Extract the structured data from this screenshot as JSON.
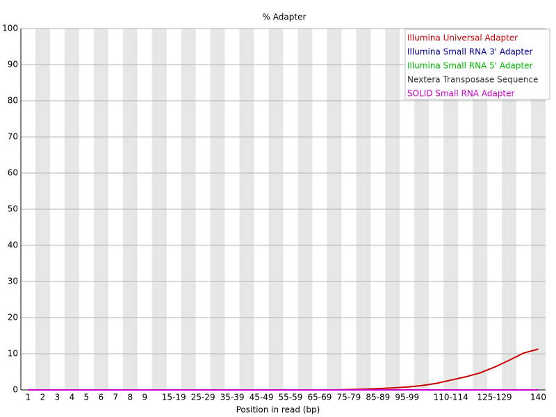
{
  "chart_data": {
    "type": "line",
    "title": "% Adapter",
    "x_label": "Position in read (bp)",
    "categories": [
      "1",
      "2",
      "3",
      "4",
      "5",
      "6",
      "7",
      "8",
      "9",
      null,
      "15-19",
      null,
      "25-29",
      null,
      "35-39",
      null,
      "45-49",
      null,
      "55-59",
      null,
      "65-69",
      null,
      "75-79",
      null,
      "85-89",
      null,
      "95-99",
      null,
      null,
      "110-114",
      null,
      null,
      "125-129",
      null,
      null,
      "140"
    ],
    "series": [
      {
        "name": "Illumina Universal Adapter",
        "color": "#cc0000",
        "values": [
          0,
          0,
          0,
          0,
          0,
          0,
          0,
          0,
          0,
          0,
          0,
          0,
          0,
          0,
          0,
          0,
          0,
          0,
          0,
          0,
          0,
          0,
          0.1,
          0.2,
          0.35,
          0.55,
          0.8,
          1.2,
          1.8,
          2.7,
          3.6,
          4.7,
          6.3,
          8.2,
          10.2,
          11.3
        ]
      },
      {
        "name": "Illumina Small RNA 3' Adapter",
        "color": "#000099",
        "values": [
          0,
          0,
          0,
          0,
          0,
          0,
          0,
          0,
          0,
          0,
          0,
          0,
          0,
          0,
          0,
          0,
          0,
          0,
          0,
          0,
          0,
          0,
          0,
          0,
          0,
          0,
          0,
          0,
          0,
          0,
          0,
          0,
          0,
          0,
          0,
          0
        ]
      },
      {
        "name": "Illumina Small RNA 5' Adapter",
        "color": "#00bb00",
        "values": [
          0,
          0,
          0,
          0,
          0,
          0,
          0,
          0,
          0,
          0,
          0,
          0,
          0,
          0,
          0,
          0,
          0,
          0,
          0,
          0,
          0,
          0,
          0,
          0,
          0,
          0,
          0,
          0,
          0,
          0,
          0,
          0,
          0,
          0,
          0,
          0
        ]
      },
      {
        "name": "Nextera Transposase Sequence",
        "color": "#333333",
        "values": [
          0,
          0,
          0,
          0,
          0,
          0,
          0,
          0,
          0,
          0,
          0,
          0,
          0,
          0,
          0,
          0,
          0,
          0,
          0,
          0,
          0,
          0,
          0,
          0,
          0,
          0,
          0,
          0,
          0,
          0,
          0,
          0,
          0,
          0,
          0,
          0
        ]
      },
      {
        "name": "SOLID Small RNA Adapter",
        "color": "#cc00cc",
        "values": [
          0,
          0,
          0,
          0,
          0,
          0,
          0,
          0,
          0,
          0,
          0,
          0,
          0,
          0,
          0,
          0,
          0,
          0,
          0,
          0,
          0,
          0,
          0,
          0,
          0,
          0,
          0,
          0,
          0,
          0,
          0,
          0,
          0,
          0,
          0,
          0
        ]
      }
    ],
    "ylim": [
      0,
      100
    ],
    "yticks": [
      0,
      10,
      20,
      30,
      40,
      50,
      60,
      70,
      80,
      90,
      100
    ],
    "grid": true,
    "legend": "top-right"
  }
}
